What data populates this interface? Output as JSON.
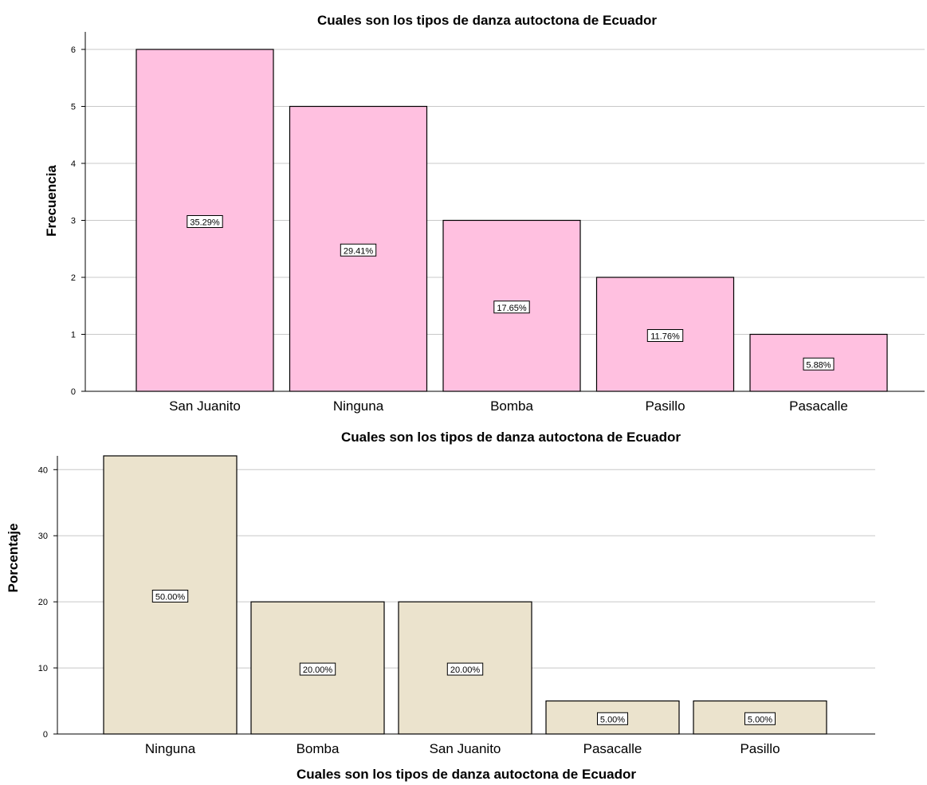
{
  "chart_data": [
    {
      "type": "bar",
      "title": "Cuales son los tipos de danza autoctona de Ecuador",
      "xlabel": "",
      "ylabel": "Frecuencia",
      "categories": [
        "San Juanito",
        "Ninguna",
        "Bomba",
        "Pasillo",
        "Pasacalle"
      ],
      "values": [
        6,
        5,
        3,
        2,
        1
      ],
      "data_labels": [
        "35.29%",
        "29.41%",
        "17.65%",
        "11.76%",
        "5.88%"
      ],
      "ylim": [
        0,
        6
      ],
      "yticks": [
        "0",
        "1",
        "2",
        "3",
        "4",
        "5",
        "6"
      ],
      "bar_color": "#ffc0e0",
      "grid": true
    },
    {
      "type": "bar",
      "title": "Cuales son los tipos de danza autoctona de Ecuador",
      "xlabel": "Cuales son los tipos de danza autoctona de Ecuador",
      "ylabel": "Porcentaje",
      "categories": [
        "Ninguna",
        "Bomba",
        "San Juanito",
        "Pasacalle",
        "Pasillo"
      ],
      "values": [
        50,
        20,
        20,
        5,
        5
      ],
      "data_labels": [
        "50.00%",
        "20.00%",
        "20.00%",
        "5.00%",
        "5.00%"
      ],
      "ylim": [
        0,
        41
      ],
      "yticks": [
        "0",
        "10",
        "20",
        "30",
        "40"
      ],
      "bar_color": "#ebe3cd",
      "grid": true
    }
  ]
}
